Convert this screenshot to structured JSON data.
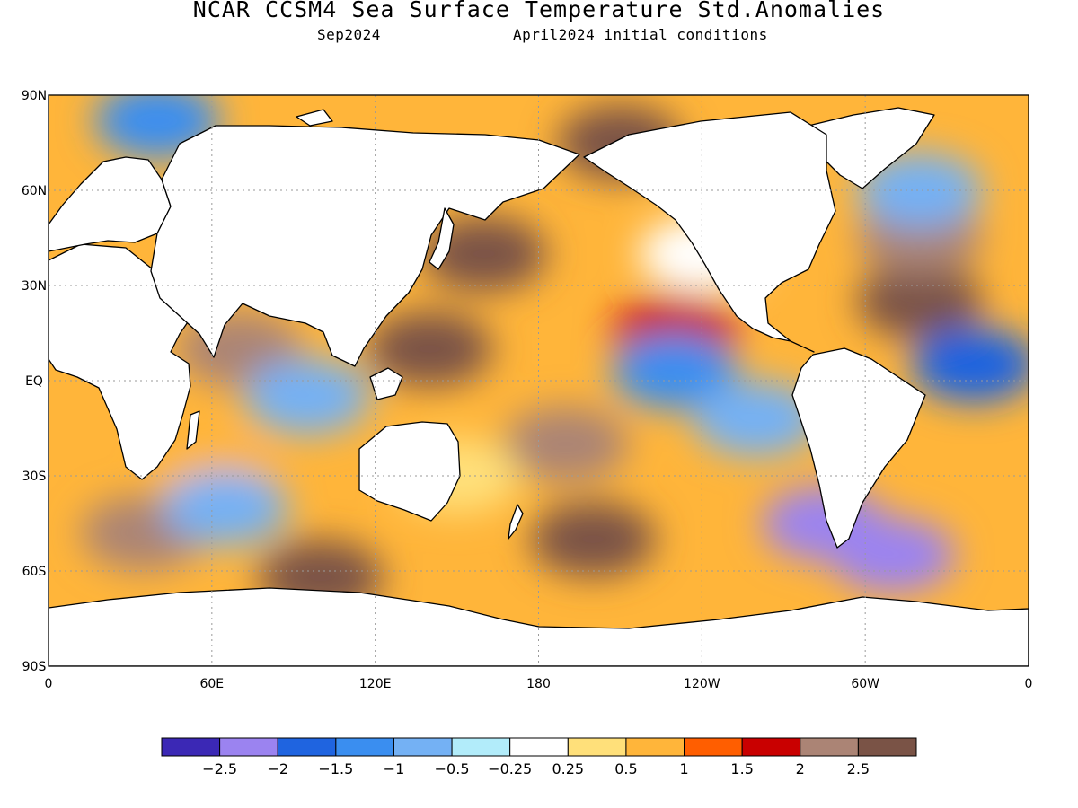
{
  "header": {
    "title": "NCAR_CCSM4 Sea Surface Temperature Std.Anomalies",
    "valid_month": "Sep2024",
    "initial_conditions": "April2024 initial conditions"
  },
  "map": {
    "projection": "equirectangular",
    "lon_range": [
      0,
      360
    ],
    "lat_range": [
      -90,
      90
    ],
    "lat_labels": [
      "90N",
      "60N",
      "30N",
      "EQ",
      "30S",
      "60S",
      "90S"
    ],
    "lon_labels": [
      "0",
      "60E",
      "120E",
      "180",
      "120W",
      "60W",
      "0"
    ],
    "land_color": "#ffffff",
    "coastline_color": "#000000",
    "gridlines": "dotted"
  },
  "colorbar": {
    "tick_labels": [
      "−2.5",
      "−2",
      "−1.5",
      "−1",
      "−0.5",
      "−0.25",
      "0.25",
      "0.5",
      "1",
      "1.5",
      "2",
      "2.5"
    ],
    "colors": [
      "#3b28b5",
      "#9b83f0",
      "#1f64e0",
      "#3a8ef0",
      "#74b1f4",
      "#b2ecfa",
      "#ffffff",
      "#ffe07a",
      "#ffb53a",
      "#ff5e00",
      "#c90000",
      "#ab8475",
      "#7a5346"
    ]
  },
  "anomaly_patches": [
    {
      "lon": 160,
      "lat": 40,
      "value": 3.0
    },
    {
      "lon": 210,
      "lat": 75,
      "value": 3.0
    },
    {
      "lon": 320,
      "lat": 25,
      "value": 3.0
    },
    {
      "lon": 140,
      "lat": 10,
      "value": 2.5
    },
    {
      "lon": 190,
      "lat": -20,
      "value": 2.3
    },
    {
      "lon": 100,
      "lat": -62,
      "value": 3.0
    },
    {
      "lon": 200,
      "lat": -50,
      "value": 2.5
    },
    {
      "lon": 320,
      "lat": 45,
      "value": 2.0
    },
    {
      "lon": 70,
      "lat": 10,
      "value": 2.0
    },
    {
      "lon": 35,
      "lat": -48,
      "value": 2.0
    },
    {
      "lon": 230,
      "lat": 15,
      "value": 1.5
    },
    {
      "lon": 60,
      "lat": -30,
      "value": 0.8
    },
    {
      "lon": 230,
      "lat": 3,
      "value": -1.5
    },
    {
      "lon": 260,
      "lat": -12,
      "value": -0.8
    },
    {
      "lon": 285,
      "lat": -45,
      "value": -2.2
    },
    {
      "lon": 310,
      "lat": -55,
      "value": -2.3
    },
    {
      "lon": 340,
      "lat": 5,
      "value": -2.0
    },
    {
      "lon": 95,
      "lat": -5,
      "value": -1.0
    },
    {
      "lon": 65,
      "lat": -40,
      "value": -0.7
    },
    {
      "lon": 40,
      "lat": 82,
      "value": -1.3
    },
    {
      "lon": 320,
      "lat": 60,
      "value": -1.0
    },
    {
      "lon": 240,
      "lat": 40,
      "value": 0.2
    },
    {
      "lon": 150,
      "lat": -30,
      "value": 0.3
    }
  ],
  "icon_names": [
    "coastline-outline"
  ]
}
